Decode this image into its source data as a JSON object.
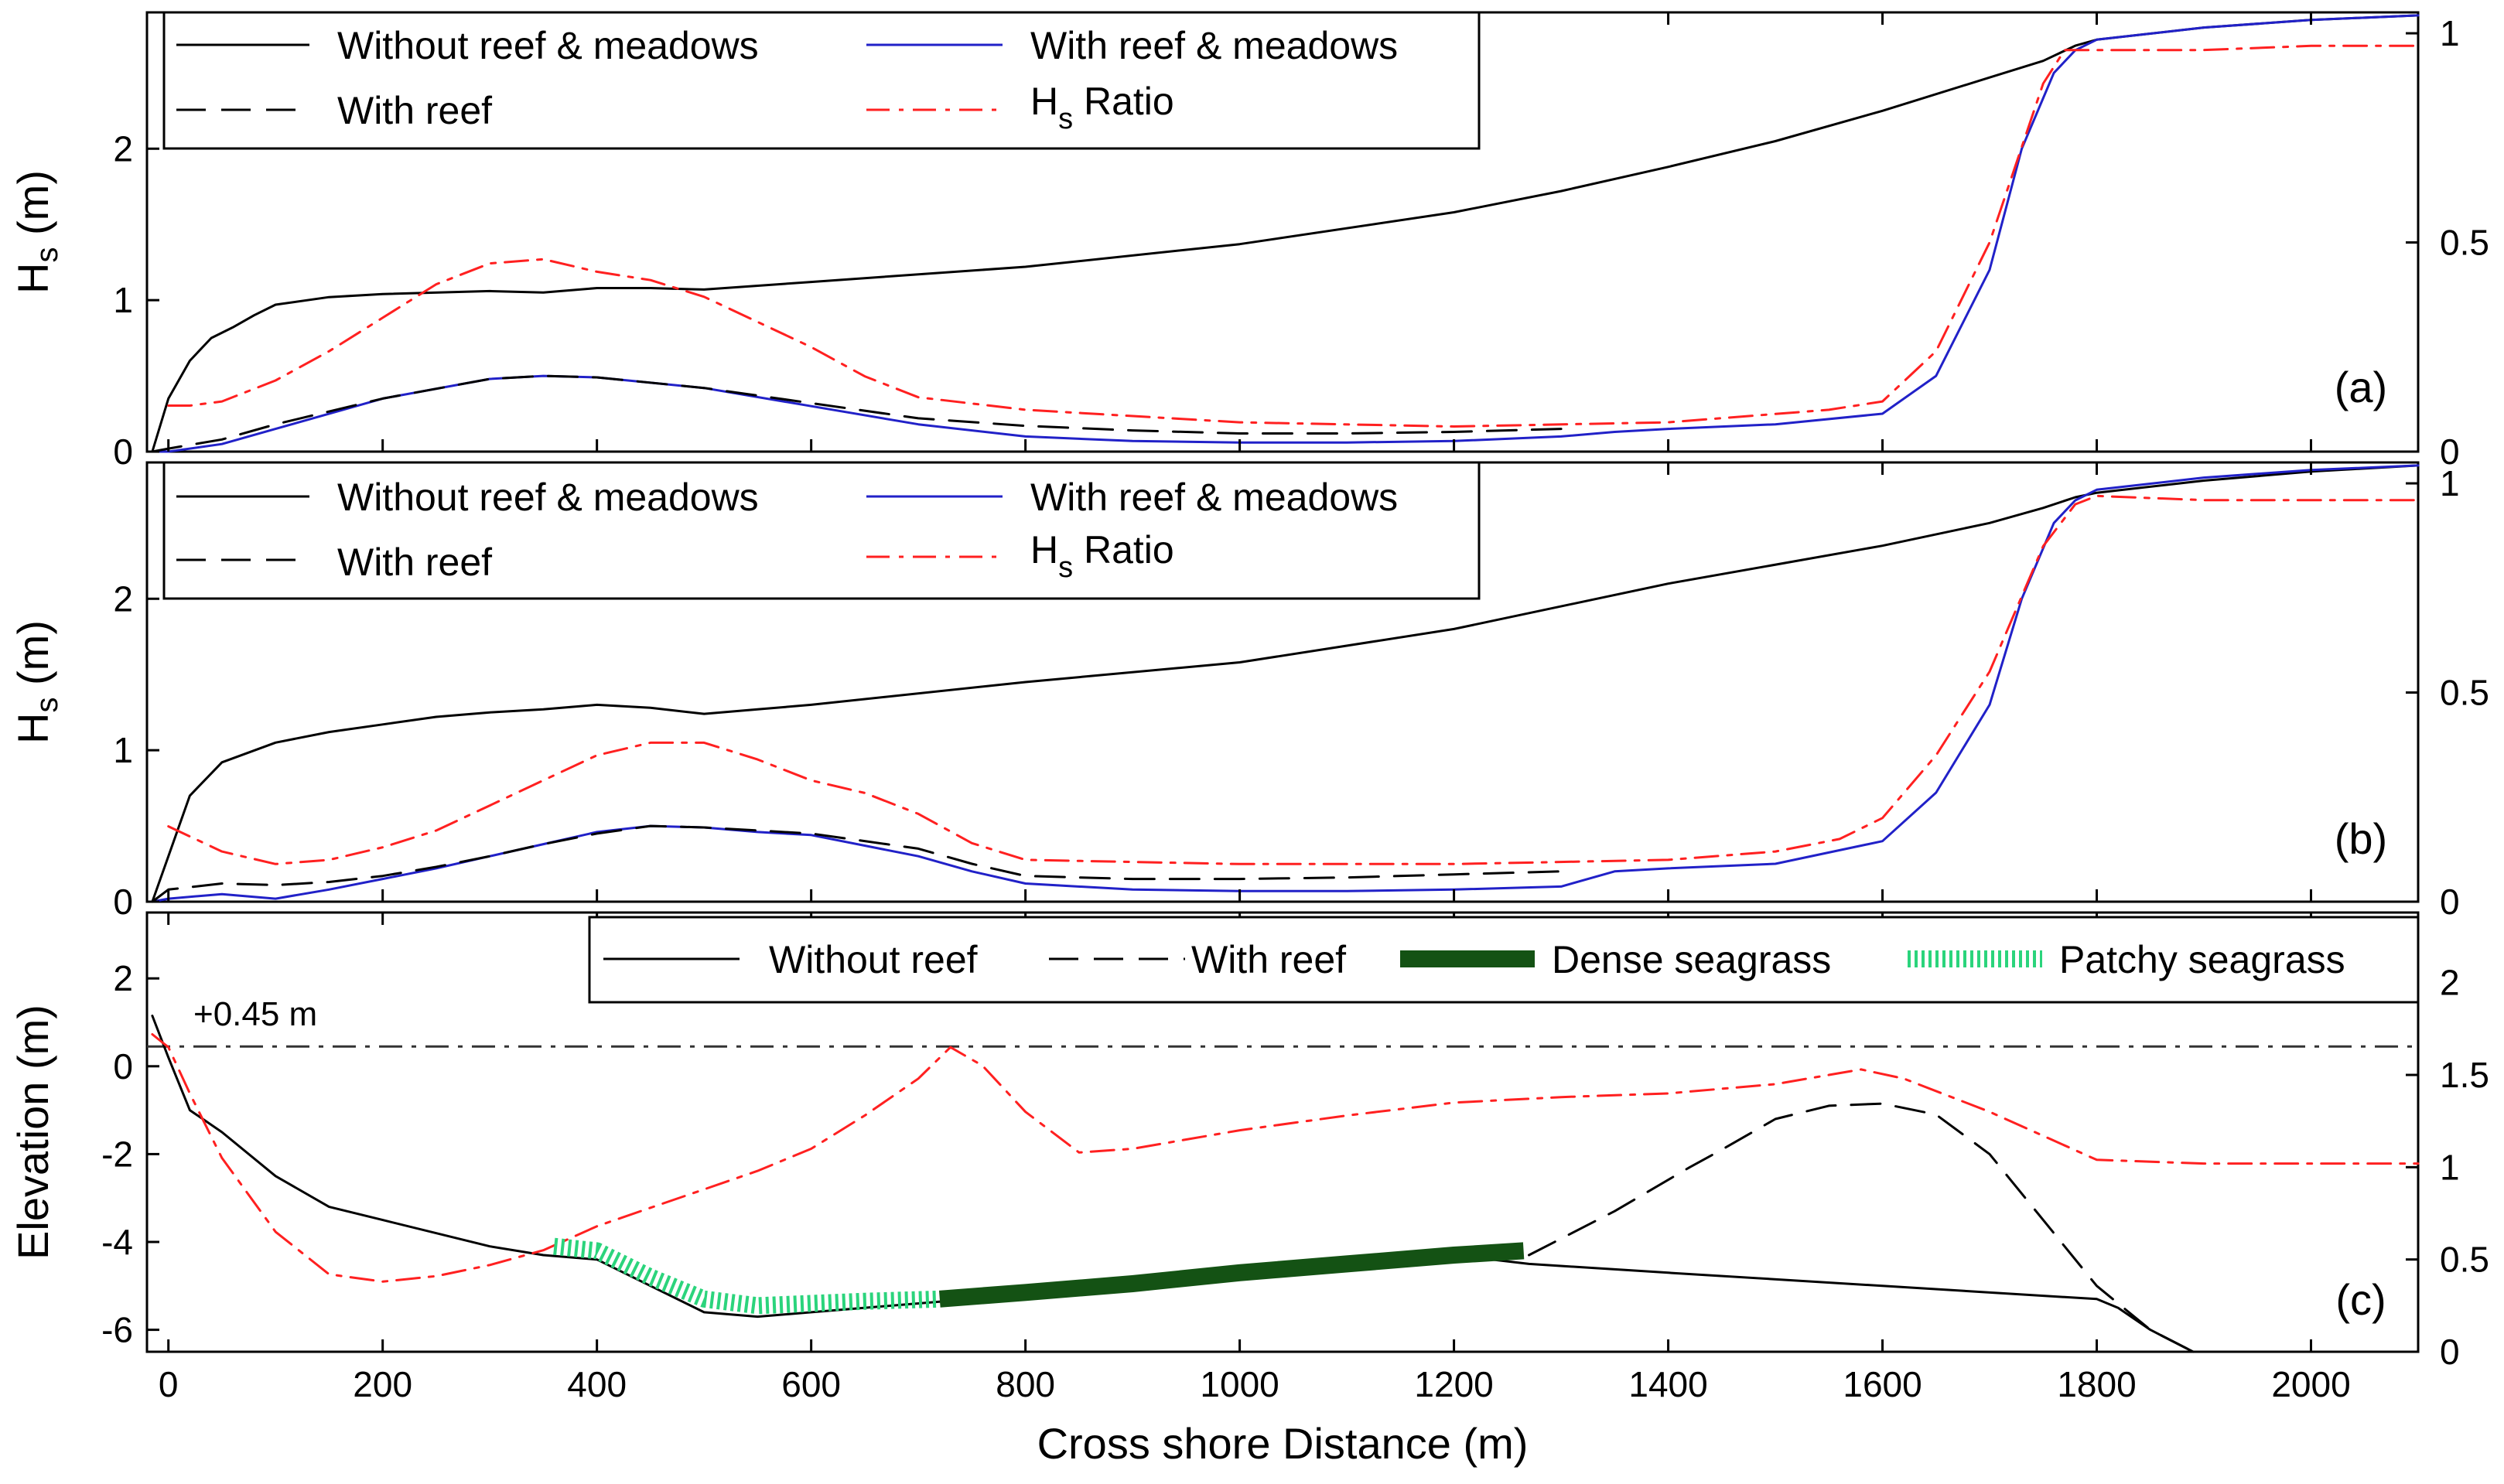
{
  "chart_data": [
    {
      "type": "line",
      "panel": "(a)",
      "xlabel": "",
      "ylabel": "H",
      "ylabel_sub": "s",
      "ylabel_unit": "(m)",
      "xlim": [
        -20,
        2100
      ],
      "ylim": [
        0,
        2.9
      ],
      "y2lim": [
        0,
        1.05
      ],
      "xticks": [
        0,
        200,
        400,
        600,
        800,
        1000,
        1200,
        1400,
        1600,
        1800,
        2000
      ],
      "yticks": [
        0,
        1,
        2
      ],
      "y2ticks": [
        0,
        0.5,
        1
      ],
      "legend": {
        "placement": "top-left",
        "entries": [
          {
            "label": "Without reef & meadows",
            "style": "solid-black"
          },
          {
            "label": "With reef & meadows",
            "style": "solid-blue"
          },
          {
            "label": "With reef",
            "style": "dashed-black"
          },
          {
            "label": "H",
            "sub": "s",
            "tail": " Ratio",
            "style": "dashdot-red"
          }
        ]
      },
      "series": [
        {
          "name": "Without reef & meadows",
          "axis": "left",
          "color": "#000000",
          "x": [
            -15,
            0,
            20,
            40,
            60,
            80,
            100,
            150,
            200,
            300,
            350,
            400,
            450,
            500,
            600,
            800,
            1000,
            1200,
            1300,
            1400,
            1500,
            1600,
            1700,
            1750,
            1780,
            1800,
            1900,
            2000,
            2100
          ],
          "y": [
            0.0,
            0.35,
            0.6,
            0.75,
            0.82,
            0.9,
            0.97,
            1.02,
            1.04,
            1.06,
            1.05,
            1.08,
            1.08,
            1.07,
            1.12,
            1.22,
            1.37,
            1.58,
            1.72,
            1.88,
            2.05,
            2.25,
            2.47,
            2.58,
            2.68,
            2.72,
            2.8,
            2.85,
            2.88
          ]
        },
        {
          "name": "With reef & meadows",
          "axis": "left",
          "color": "#2121c8",
          "x": [
            -15,
            0,
            50,
            100,
            200,
            300,
            350,
            400,
            500,
            600,
            700,
            800,
            900,
            1000,
            1100,
            1200,
            1300,
            1350,
            1400,
            1500,
            1600,
            1650,
            1700,
            1730,
            1760,
            1780,
            1800,
            1900,
            2000,
            2100
          ],
          "y": [
            0.0,
            0.0,
            0.05,
            0.15,
            0.35,
            0.48,
            0.5,
            0.49,
            0.42,
            0.3,
            0.18,
            0.1,
            0.07,
            0.06,
            0.06,
            0.07,
            0.1,
            0.13,
            0.15,
            0.18,
            0.25,
            0.5,
            1.2,
            2.0,
            2.5,
            2.65,
            2.72,
            2.8,
            2.85,
            2.88
          ]
        },
        {
          "name": "With reef",
          "axis": "left",
          "color": "#000000",
          "dash": true,
          "x": [
            -15,
            0,
            50,
            100,
            200,
            300,
            350,
            400,
            500,
            600,
            700,
            800,
            900,
            1000,
            1100,
            1200,
            1300
          ],
          "y": [
            0.0,
            0.02,
            0.08,
            0.18,
            0.35,
            0.48,
            0.5,
            0.49,
            0.42,
            0.32,
            0.22,
            0.17,
            0.14,
            0.12,
            0.12,
            0.13,
            0.15
          ]
        },
        {
          "name": "Hs Ratio",
          "axis": "right",
          "color": "#ff2020",
          "dashdot": true,
          "x": [
            0,
            20,
            50,
            100,
            150,
            200,
            250,
            300,
            350,
            400,
            450,
            500,
            550,
            600,
            650,
            700,
            800,
            1000,
            1200,
            1400,
            1550,
            1600,
            1650,
            1700,
            1750,
            1770,
            1800,
            1900,
            2000,
            2100
          ],
          "y": [
            0.11,
            0.11,
            0.12,
            0.17,
            0.24,
            0.32,
            0.4,
            0.45,
            0.46,
            0.43,
            0.41,
            0.37,
            0.31,
            0.25,
            0.18,
            0.13,
            0.1,
            0.07,
            0.06,
            0.07,
            0.1,
            0.12,
            0.24,
            0.5,
            0.88,
            0.96,
            0.96,
            0.96,
            0.97,
            0.97
          ]
        }
      ]
    },
    {
      "type": "line",
      "panel": "(b)",
      "xlabel": "",
      "ylabel": "H",
      "ylabel_sub": "s",
      "ylabel_unit": "(m)",
      "xlim": [
        -20,
        2100
      ],
      "ylim": [
        0,
        2.9
      ],
      "y2lim": [
        0,
        1.05
      ],
      "xticks": [
        0,
        200,
        400,
        600,
        800,
        1000,
        1200,
        1400,
        1600,
        1800,
        2000
      ],
      "yticks": [
        0,
        1,
        2
      ],
      "y2ticks": [
        0,
        0.5,
        1
      ],
      "legend": {
        "placement": "top-left",
        "entries": [
          {
            "label": "Without reef & meadows",
            "style": "solid-black"
          },
          {
            "label": "With reef & meadows",
            "style": "solid-blue"
          },
          {
            "label": "With reef",
            "style": "dashed-black"
          },
          {
            "label": "H",
            "sub": "s",
            "tail": " Ratio",
            "style": "dashdot-red"
          }
        ]
      },
      "series": [
        {
          "name": "Without reef & meadows",
          "axis": "left",
          "color": "#000000",
          "x": [
            -15,
            0,
            20,
            50,
            100,
            150,
            200,
            250,
            300,
            350,
            400,
            450,
            500,
            550,
            600,
            800,
            1000,
            1200,
            1400,
            1600,
            1700,
            1750,
            1780,
            1800,
            1900,
            2000,
            2100
          ],
          "y": [
            0.0,
            0.3,
            0.7,
            0.92,
            1.05,
            1.12,
            1.17,
            1.22,
            1.25,
            1.27,
            1.3,
            1.28,
            1.24,
            1.27,
            1.3,
            1.45,
            1.58,
            1.8,
            2.1,
            2.35,
            2.5,
            2.6,
            2.67,
            2.7,
            2.78,
            2.84,
            2.88
          ]
        },
        {
          "name": "With reef & meadows",
          "axis": "left",
          "color": "#2121c8",
          "x": [
            -15,
            0,
            50,
            100,
            150,
            200,
            250,
            300,
            350,
            400,
            450,
            500,
            550,
            600,
            700,
            750,
            800,
            900,
            1000,
            1100,
            1200,
            1300,
            1350,
            1400,
            1500,
            1600,
            1650,
            1700,
            1730,
            1760,
            1780,
            1800,
            1900,
            2000,
            2100
          ],
          "y": [
            0.0,
            0.02,
            0.05,
            0.02,
            0.08,
            0.15,
            0.22,
            0.3,
            0.38,
            0.46,
            0.5,
            0.49,
            0.46,
            0.44,
            0.3,
            0.2,
            0.12,
            0.08,
            0.07,
            0.07,
            0.08,
            0.1,
            0.2,
            0.22,
            0.25,
            0.4,
            0.72,
            1.3,
            2.0,
            2.5,
            2.65,
            2.72,
            2.8,
            2.85,
            2.88
          ]
        },
        {
          "name": "With reef",
          "axis": "left",
          "color": "#000000",
          "dash": true,
          "x": [
            -15,
            0,
            50,
            100,
            150,
            200,
            250,
            300,
            350,
            400,
            450,
            500,
            550,
            600,
            700,
            750,
            800,
            900,
            1000,
            1100,
            1200,
            1300
          ],
          "y": [
            0.0,
            0.08,
            0.12,
            0.11,
            0.13,
            0.17,
            0.23,
            0.3,
            0.38,
            0.45,
            0.5,
            0.49,
            0.47,
            0.45,
            0.35,
            0.25,
            0.17,
            0.15,
            0.15,
            0.16,
            0.18,
            0.2
          ]
        },
        {
          "name": "Hs Ratio",
          "axis": "right",
          "color": "#ff2020",
          "dashdot": true,
          "x": [
            0,
            50,
            100,
            150,
            200,
            250,
            300,
            350,
            400,
            450,
            500,
            550,
            600,
            650,
            700,
            750,
            800,
            1000,
            1200,
            1400,
            1500,
            1560,
            1600,
            1650,
            1700,
            1750,
            1780,
            1800,
            1900,
            2000,
            2100
          ],
          "y": [
            0.18,
            0.12,
            0.09,
            0.1,
            0.13,
            0.17,
            0.23,
            0.29,
            0.35,
            0.38,
            0.38,
            0.34,
            0.29,
            0.26,
            0.21,
            0.14,
            0.1,
            0.09,
            0.09,
            0.1,
            0.12,
            0.15,
            0.2,
            0.35,
            0.55,
            0.85,
            0.95,
            0.97,
            0.96,
            0.96,
            0.96
          ]
        }
      ]
    },
    {
      "type": "line",
      "panel": "(c)",
      "xlabel": "Cross shore Distance (m)",
      "ylabel": "Elevation (m)",
      "xlim": [
        -20,
        2100
      ],
      "ylim": [
        -6.5,
        3.5
      ],
      "y2lim": [
        0,
        2.38
      ],
      "xticks": [
        0,
        200,
        400,
        600,
        800,
        1000,
        1200,
        1400,
        1600,
        1800,
        2000
      ],
      "yticks": [
        -6,
        -4,
        -2,
        0,
        2
      ],
      "y2ticks": [
        0,
        0.5,
        1,
        1.5,
        2
      ],
      "annotation": "+0.45 m",
      "annotation_level": 0.45,
      "legend": {
        "placement": "top-right",
        "entries": [
          {
            "label": "Without reef",
            "style": "solid-black"
          },
          {
            "label": "With reef",
            "style": "dashed-black"
          },
          {
            "label": "Dense seagrass",
            "style": "band-dark-green"
          },
          {
            "label": "Patchy seagrass",
            "style": "band-light-green"
          }
        ]
      },
      "series": [
        {
          "name": "Without reef",
          "axis": "left",
          "color": "#000000",
          "x": [
            -15,
            0,
            20,
            50,
            100,
            150,
            200,
            300,
            350,
            400,
            450,
            500,
            550,
            600,
            700,
            800,
            900,
            1000,
            1100,
            1200,
            1270,
            1400,
            1600,
            1800,
            1820,
            1850,
            1890
          ],
          "y": [
            1.15,
            0.2,
            -1.0,
            -1.5,
            -2.5,
            -3.2,
            -3.5,
            -4.1,
            -4.3,
            -4.4,
            -5.0,
            -5.6,
            -5.7,
            -5.6,
            -5.4,
            -5.2,
            -4.95,
            -4.7,
            -4.5,
            -4.3,
            -4.5,
            -4.7,
            -5.0,
            -5.3,
            -5.5,
            -6.0,
            -6.5
          ]
        },
        {
          "name": "With reef",
          "axis": "left",
          "color": "#000000",
          "dash": true,
          "x": [
            1270,
            1350,
            1420,
            1450,
            1500,
            1550,
            1600,
            1650,
            1700,
            1750,
            1800,
            1850,
            1890
          ],
          "y": [
            -4.3,
            -3.3,
            -2.3,
            -1.9,
            -1.2,
            -0.9,
            -0.85,
            -1.1,
            -2.0,
            -3.5,
            -5.0,
            -6.0,
            -6.5
          ]
        },
        {
          "name": "Ratio",
          "axis": "right",
          "color": "#ff2020",
          "dashdot": true,
          "x": [
            -15,
            0,
            20,
            50,
            100,
            150,
            200,
            250,
            300,
            350,
            400,
            450,
            500,
            550,
            600,
            650,
            700,
            730,
            760,
            800,
            850,
            900,
            1000,
            1100,
            1200,
            1300,
            1400,
            1500,
            1550,
            1580,
            1620,
            1700,
            1800,
            1900,
            2000,
            2100
          ],
          "y": [
            1.72,
            1.65,
            1.4,
            1.05,
            0.65,
            0.42,
            0.38,
            0.41,
            0.47,
            0.55,
            0.68,
            0.78,
            0.88,
            0.98,
            1.1,
            1.28,
            1.48,
            1.65,
            1.55,
            1.3,
            1.08,
            1.1,
            1.2,
            1.28,
            1.35,
            1.38,
            1.4,
            1.45,
            1.5,
            1.53,
            1.48,
            1.3,
            1.04,
            1.02,
            1.02,
            1.02
          ]
        },
        {
          "name": "Patchy seagrass",
          "color": "#2bd47c",
          "band": "patchy",
          "x": [
            360,
            400,
            450,
            500,
            550,
            600,
            650,
            720
          ],
          "y": [
            -4.1,
            -4.2,
            -4.8,
            -5.3,
            -5.45,
            -5.4,
            -5.35,
            -5.3
          ]
        },
        {
          "name": "Dense seagrass",
          "color": "#145214",
          "band": "dense",
          "x": [
            720,
            800,
            900,
            1000,
            1100,
            1200,
            1265
          ],
          "y": [
            -5.3,
            -5.15,
            -4.95,
            -4.7,
            -4.5,
            -4.3,
            -4.2
          ]
        }
      ]
    }
  ]
}
